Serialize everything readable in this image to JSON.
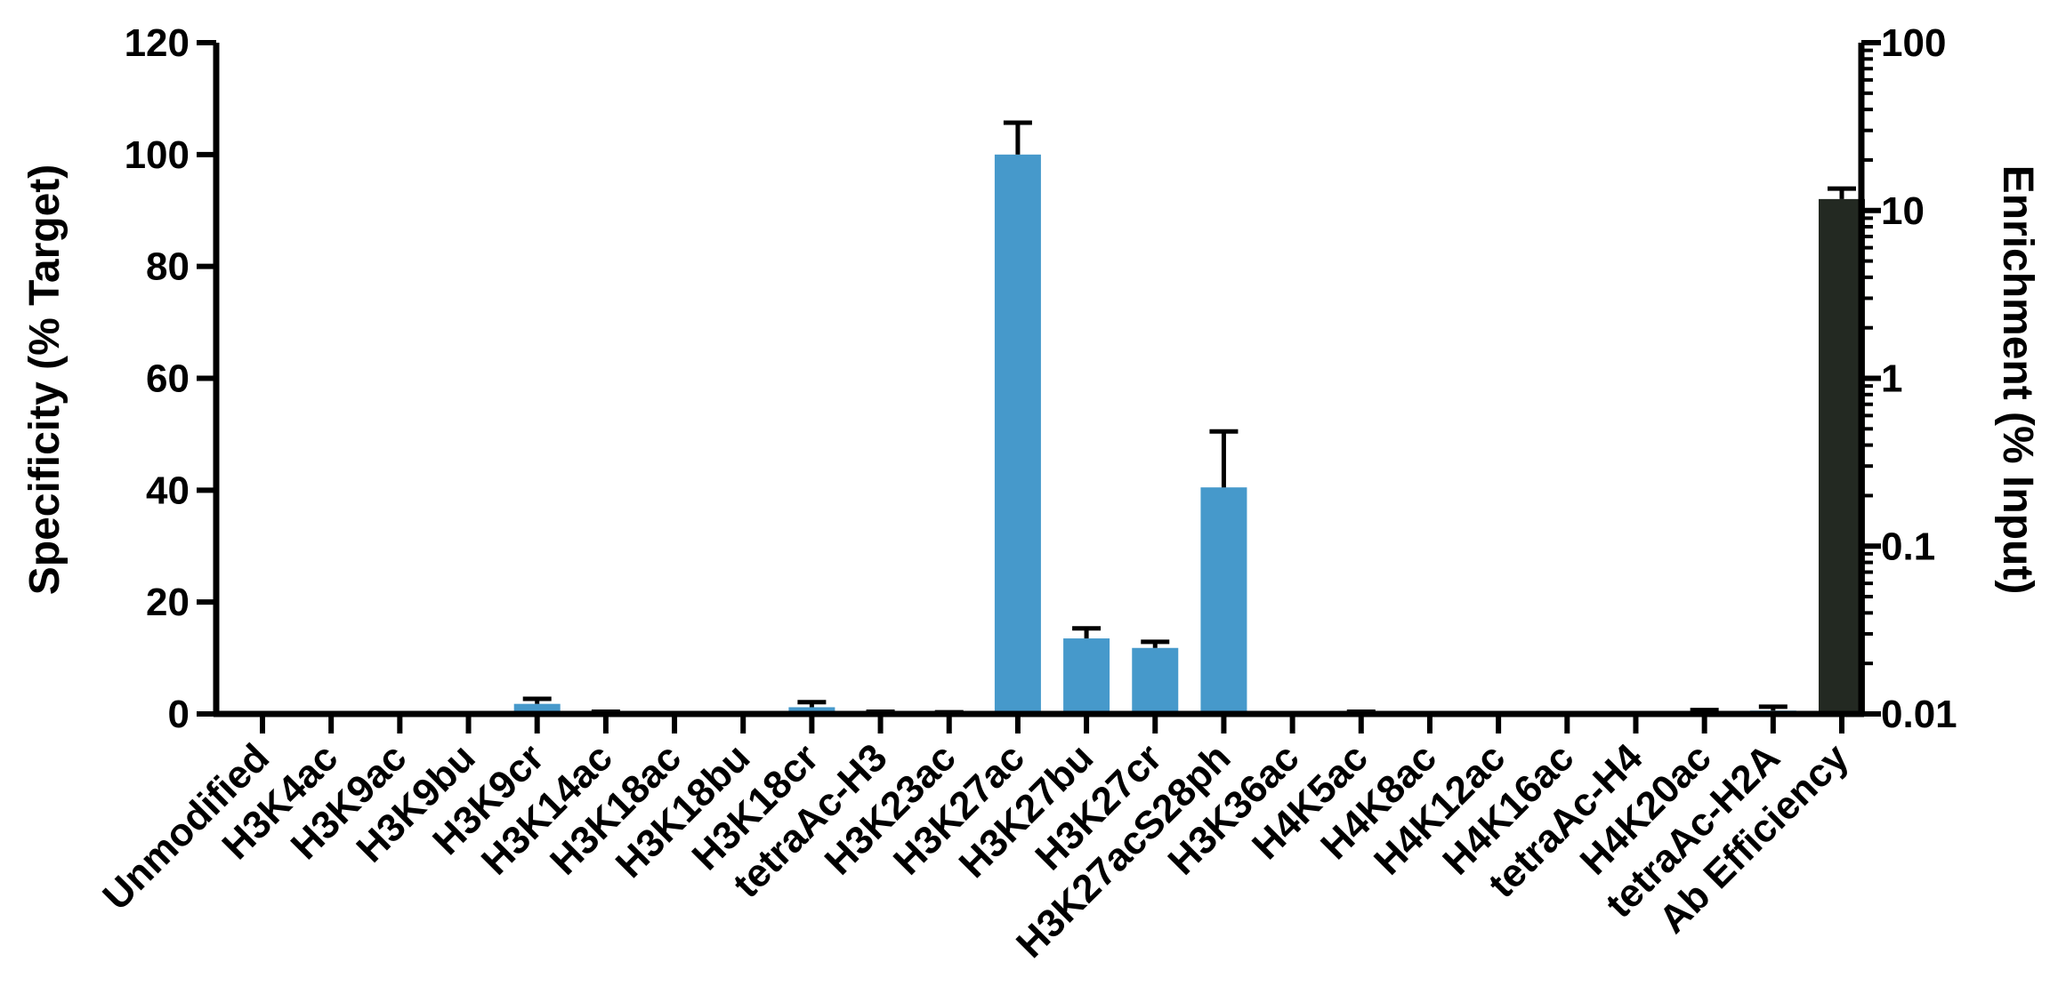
{
  "chart_data": {
    "type": "bar",
    "title": "",
    "xlabel": "",
    "ylabel": "Specificity (% Target)",
    "ylabel_right": "Enrichment (% Input)",
    "ylim": [
      0,
      120
    ],
    "y_ticks": [
      "0",
      "20",
      "40",
      "60",
      "80",
      "100",
      "120"
    ],
    "y_right_scale": "log",
    "y_right_lim": [
      0.01,
      100
    ],
    "y_right_ticks": [
      "0.01",
      "0.1",
      "1",
      "10",
      "100"
    ],
    "grid": false,
    "categories": [
      "Unmodified",
      "H3K4ac",
      "H3K9ac",
      "H3K9bu",
      "H3K9cr",
      "H3K14ac",
      "H3K18ac",
      "H3K18bu",
      "H3K18cr",
      "tetraAc-H3",
      "H3K23ac",
      "H3K27ac",
      "H3K27bu",
      "H3K27cr",
      "H3K27acS28ph",
      "H3K36ac",
      "H4K5ac",
      "H4K8ac",
      "H4K12ac",
      "H4K16ac",
      "tetraAc-H4",
      "H4K20ac",
      "tetraAc-H2A",
      "Ab Efficiency"
    ],
    "series": [
      {
        "axis": "left",
        "color": "#4699CB",
        "values": [
          0,
          0,
          0,
          0,
          1.8,
          0.3,
          0,
          0,
          1.2,
          0.3,
          0.2,
          100,
          13.5,
          11.8,
          40.5,
          0,
          0.3,
          0,
          0,
          0,
          0,
          0.5,
          0.6,
          null
        ],
        "error": [
          0,
          0,
          0,
          0,
          0.9,
          0.1,
          0,
          0,
          0.9,
          0.1,
          0.1,
          5.7,
          1.8,
          1.1,
          10,
          0,
          0.1,
          0,
          0,
          0,
          0,
          0.2,
          0.7,
          null
        ]
      },
      {
        "axis": "right",
        "color": "#232922",
        "values": [
          null,
          null,
          null,
          null,
          null,
          null,
          null,
          null,
          null,
          null,
          null,
          null,
          null,
          null,
          null,
          null,
          null,
          null,
          null,
          null,
          null,
          null,
          null,
          11.7
        ],
        "error": [
          null,
          null,
          null,
          null,
          null,
          null,
          null,
          null,
          null,
          null,
          null,
          null,
          null,
          null,
          null,
          null,
          null,
          null,
          null,
          null,
          null,
          null,
          null,
          1.8
        ]
      }
    ]
  }
}
